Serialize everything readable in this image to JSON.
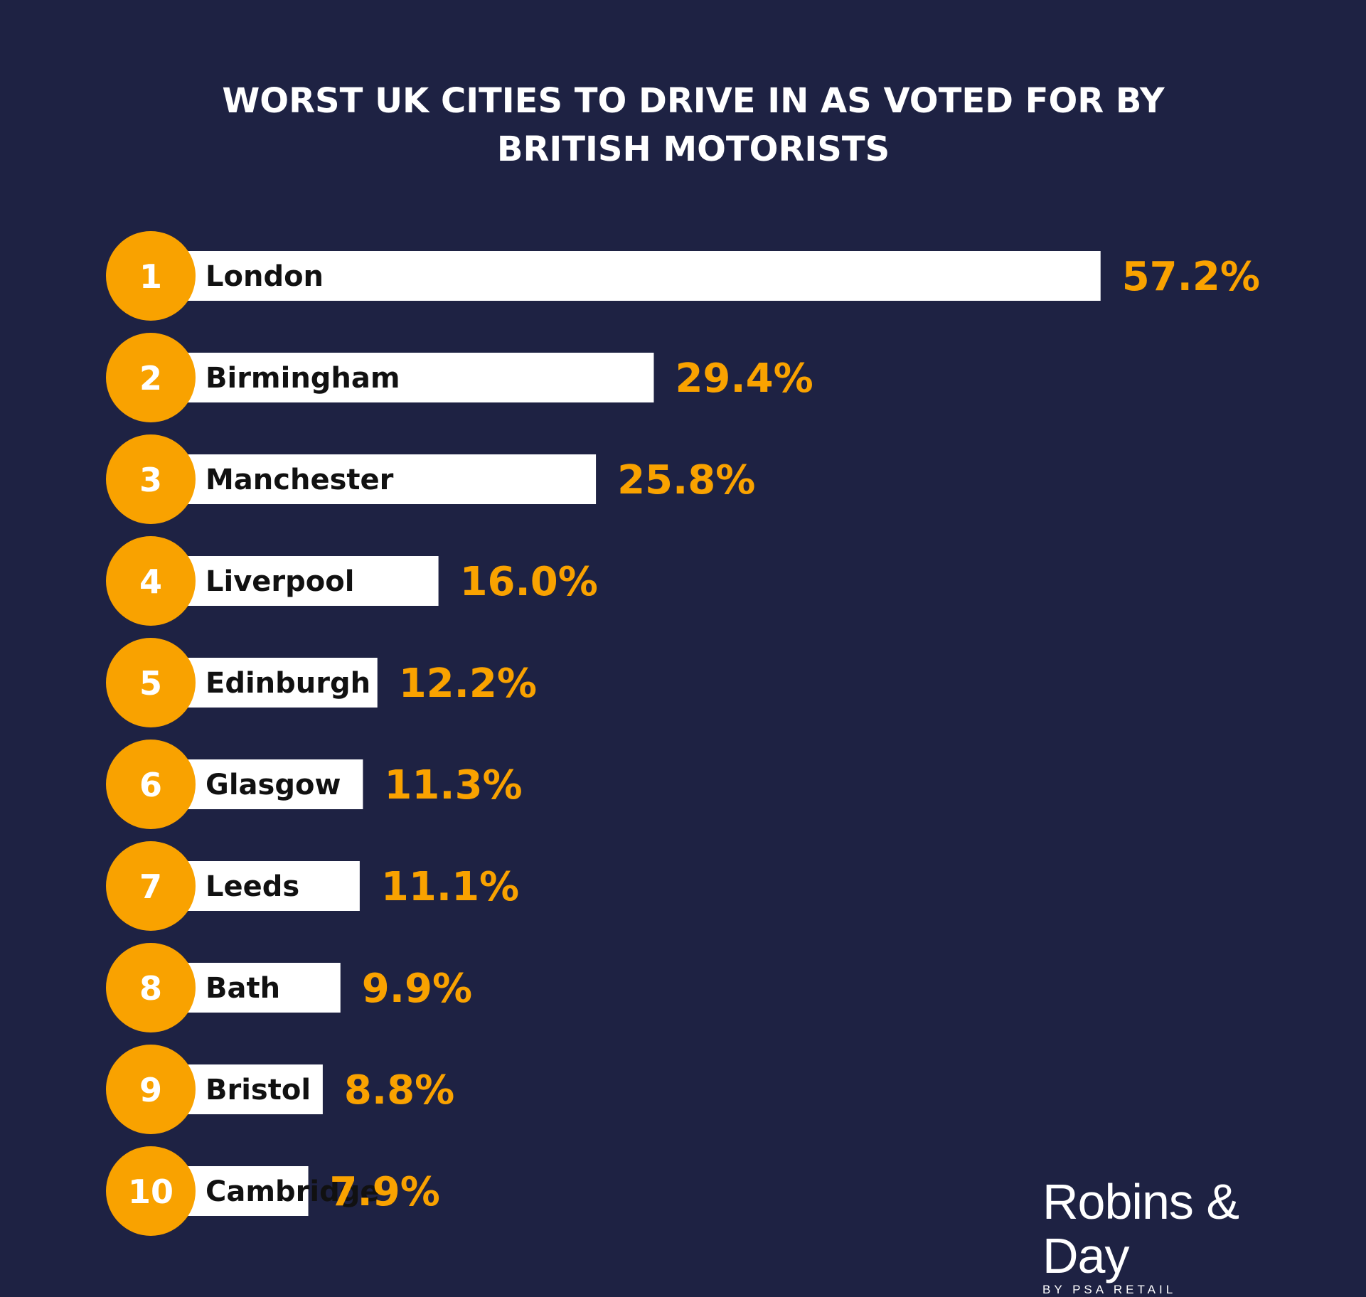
{
  "title": {
    "line1": "WORST UK CITIES TO DRIVE IN AS VOTED FOR BY",
    "line2": "BRITISH MOTORISTS"
  },
  "colors": {
    "background": "#1e2243",
    "accent": "#f9a200",
    "bar": "#ffffff"
  },
  "chart_data": {
    "type": "bar",
    "orientation": "horizontal",
    "title": "WORST UK CITIES TO DRIVE IN AS VOTED FOR BY BRITISH MOTORISTS",
    "unit": "%",
    "xlabel": "",
    "ylabel": "",
    "grid": false,
    "legend": "none",
    "ranks": [
      "1",
      "2",
      "3",
      "4",
      "5",
      "6",
      "7",
      "8",
      "9",
      "10"
    ],
    "categories": [
      "London",
      "Birmingham",
      "Manchester",
      "Liverpool",
      "Edinburgh",
      "Glasgow",
      "Leeds",
      "Bath",
      "Bristol",
      "Cambridge"
    ],
    "values": [
      57.2,
      29.4,
      25.8,
      16.0,
      12.2,
      11.3,
      11.1,
      9.9,
      8.8,
      7.9
    ],
    "value_labels": [
      "57.2%",
      "29.4%",
      "25.8%",
      "16.0%",
      "12.2%",
      "11.3%",
      "11.1%",
      "9.9%",
      "8.8%",
      "7.9%"
    ]
  },
  "logo": {
    "name": "Robins & Day",
    "sub": "BY PSA RETAIL"
  }
}
